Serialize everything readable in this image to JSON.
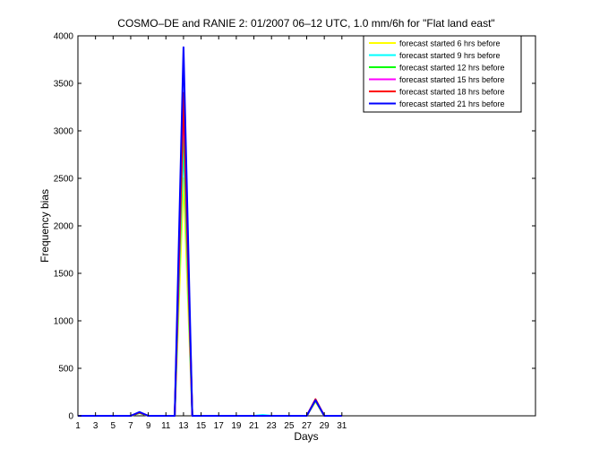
{
  "chart_data": {
    "type": "line",
    "title": "COSMO–DE and RANIE 2: 01/2007 06–12 UTC, 1.0 mm/6h for \"Flat land east\"",
    "xlabel": "Days",
    "ylabel": "Frequency bias",
    "xlim": [
      1,
      53
    ],
    "ylim": [
      0,
      4000
    ],
    "x_ticks": [
      "1",
      "3",
      "5",
      "7",
      "9",
      "11",
      "13",
      "15",
      "17",
      "19",
      "21",
      "23",
      "25",
      "27",
      "29",
      "31"
    ],
    "y_ticks": [
      "0",
      "500",
      "1000",
      "1500",
      "2000",
      "2500",
      "3000",
      "3500",
      "4000"
    ],
    "grid": false,
    "legend_position": "top-right",
    "series": [
      {
        "name": "forecast started 6 hrs before",
        "color": "#ffff00",
        "points": [
          [
            1,
            0
          ],
          [
            2,
            0
          ],
          [
            3,
            0
          ],
          [
            4,
            0
          ],
          [
            5,
            0
          ],
          [
            6,
            0
          ],
          [
            7,
            0
          ],
          [
            8,
            30
          ],
          [
            9,
            0
          ],
          [
            10,
            0
          ],
          [
            11,
            0
          ],
          [
            12,
            0
          ],
          [
            13,
            2500
          ],
          [
            14,
            0
          ],
          [
            15,
            0
          ],
          [
            16,
            0
          ],
          [
            17,
            0
          ],
          [
            18,
            0
          ],
          [
            19,
            0
          ],
          [
            20,
            0
          ],
          [
            21,
            0
          ],
          [
            22,
            0
          ],
          [
            23,
            0
          ],
          [
            24,
            0
          ],
          [
            25,
            0
          ],
          [
            26,
            0
          ],
          [
            27,
            0
          ],
          [
            28,
            150
          ],
          [
            29,
            0
          ],
          [
            30,
            0
          ],
          [
            31,
            0
          ]
        ]
      },
      {
        "name": "forecast started 9 hrs before",
        "color": "#00ffff",
        "points": [
          [
            1,
            0
          ],
          [
            2,
            0
          ],
          [
            3,
            0
          ],
          [
            4,
            0
          ],
          [
            5,
            0
          ],
          [
            6,
            0
          ],
          [
            7,
            0
          ],
          [
            8,
            30
          ],
          [
            9,
            0
          ],
          [
            10,
            0
          ],
          [
            11,
            0
          ],
          [
            12,
            0
          ],
          [
            13,
            2900
          ],
          [
            14,
            0
          ],
          [
            15,
            0
          ],
          [
            16,
            0
          ],
          [
            17,
            0
          ],
          [
            18,
            0
          ],
          [
            19,
            0
          ],
          [
            20,
            0
          ],
          [
            21,
            0
          ],
          [
            22,
            8
          ],
          [
            23,
            0
          ],
          [
            24,
            0
          ],
          [
            25,
            0
          ],
          [
            26,
            0
          ],
          [
            27,
            0
          ],
          [
            28,
            160
          ],
          [
            29,
            0
          ],
          [
            30,
            0
          ],
          [
            31,
            0
          ]
        ]
      },
      {
        "name": "forecast started 12 hrs before",
        "color": "#00ff00",
        "points": [
          [
            1,
            0
          ],
          [
            2,
            0
          ],
          [
            3,
            0
          ],
          [
            4,
            0
          ],
          [
            5,
            0
          ],
          [
            6,
            0
          ],
          [
            7,
            0
          ],
          [
            8,
            30
          ],
          [
            9,
            0
          ],
          [
            10,
            0
          ],
          [
            11,
            0
          ],
          [
            12,
            0
          ],
          [
            13,
            3100
          ],
          [
            14,
            0
          ],
          [
            15,
            0
          ],
          [
            16,
            0
          ],
          [
            17,
            0
          ],
          [
            18,
            0
          ],
          [
            19,
            0
          ],
          [
            20,
            0
          ],
          [
            21,
            0
          ],
          [
            22,
            0
          ],
          [
            23,
            0
          ],
          [
            24,
            0
          ],
          [
            25,
            0
          ],
          [
            26,
            0
          ],
          [
            27,
            0
          ],
          [
            28,
            160
          ],
          [
            29,
            0
          ],
          [
            30,
            0
          ],
          [
            31,
            0
          ]
        ]
      },
      {
        "name": "forecast started 15 hrs before",
        "color": "#ff00ff",
        "points": [
          [
            1,
            0
          ],
          [
            2,
            0
          ],
          [
            3,
            0
          ],
          [
            4,
            0
          ],
          [
            5,
            0
          ],
          [
            6,
            0
          ],
          [
            7,
            0
          ],
          [
            8,
            35
          ],
          [
            9,
            0
          ],
          [
            10,
            0
          ],
          [
            11,
            0
          ],
          [
            12,
            0
          ],
          [
            13,
            3300
          ],
          [
            14,
            0
          ],
          [
            15,
            0
          ],
          [
            16,
            0
          ],
          [
            17,
            0
          ],
          [
            18,
            0
          ],
          [
            19,
            0
          ],
          [
            20,
            0
          ],
          [
            21,
            0
          ],
          [
            22,
            0
          ],
          [
            23,
            0
          ],
          [
            24,
            0
          ],
          [
            25,
            0
          ],
          [
            26,
            0
          ],
          [
            27,
            0
          ],
          [
            28,
            170
          ],
          [
            29,
            0
          ],
          [
            30,
            0
          ],
          [
            31,
            0
          ]
        ]
      },
      {
        "name": "forecast started 18 hrs before",
        "color": "#ff0000",
        "points": [
          [
            1,
            0
          ],
          [
            2,
            0
          ],
          [
            3,
            0
          ],
          [
            4,
            0
          ],
          [
            5,
            0
          ],
          [
            6,
            0
          ],
          [
            7,
            0
          ],
          [
            8,
            35
          ],
          [
            9,
            0
          ],
          [
            10,
            0
          ],
          [
            11,
            0
          ],
          [
            12,
            0
          ],
          [
            13,
            3400
          ],
          [
            14,
            0
          ],
          [
            15,
            0
          ],
          [
            16,
            0
          ],
          [
            17,
            0
          ],
          [
            18,
            0
          ],
          [
            19,
            0
          ],
          [
            20,
            0
          ],
          [
            21,
            0
          ],
          [
            22,
            0
          ],
          [
            23,
            0
          ],
          [
            24,
            0
          ],
          [
            25,
            0
          ],
          [
            26,
            0
          ],
          [
            27,
            0
          ],
          [
            28,
            175
          ],
          [
            29,
            0
          ],
          [
            30,
            0
          ],
          [
            31,
            0
          ]
        ]
      },
      {
        "name": "forecast started 21 hrs before",
        "color": "#0000ff",
        "points": [
          [
            1,
            0
          ],
          [
            2,
            0
          ],
          [
            3,
            0
          ],
          [
            4,
            0
          ],
          [
            5,
            0
          ],
          [
            6,
            0
          ],
          [
            7,
            0
          ],
          [
            8,
            40
          ],
          [
            9,
            0
          ],
          [
            10,
            0
          ],
          [
            11,
            0
          ],
          [
            12,
            0
          ],
          [
            13,
            3880
          ],
          [
            14,
            0
          ],
          [
            15,
            0
          ],
          [
            16,
            0
          ],
          [
            17,
            0
          ],
          [
            18,
            0
          ],
          [
            19,
            0
          ],
          [
            20,
            0
          ],
          [
            21,
            0
          ],
          [
            22,
            0
          ],
          [
            23,
            0
          ],
          [
            24,
            0
          ],
          [
            25,
            0
          ],
          [
            26,
            0
          ],
          [
            27,
            0
          ],
          [
            28,
            165
          ],
          [
            29,
            0
          ],
          [
            30,
            0
          ],
          [
            31,
            0
          ]
        ]
      }
    ]
  }
}
